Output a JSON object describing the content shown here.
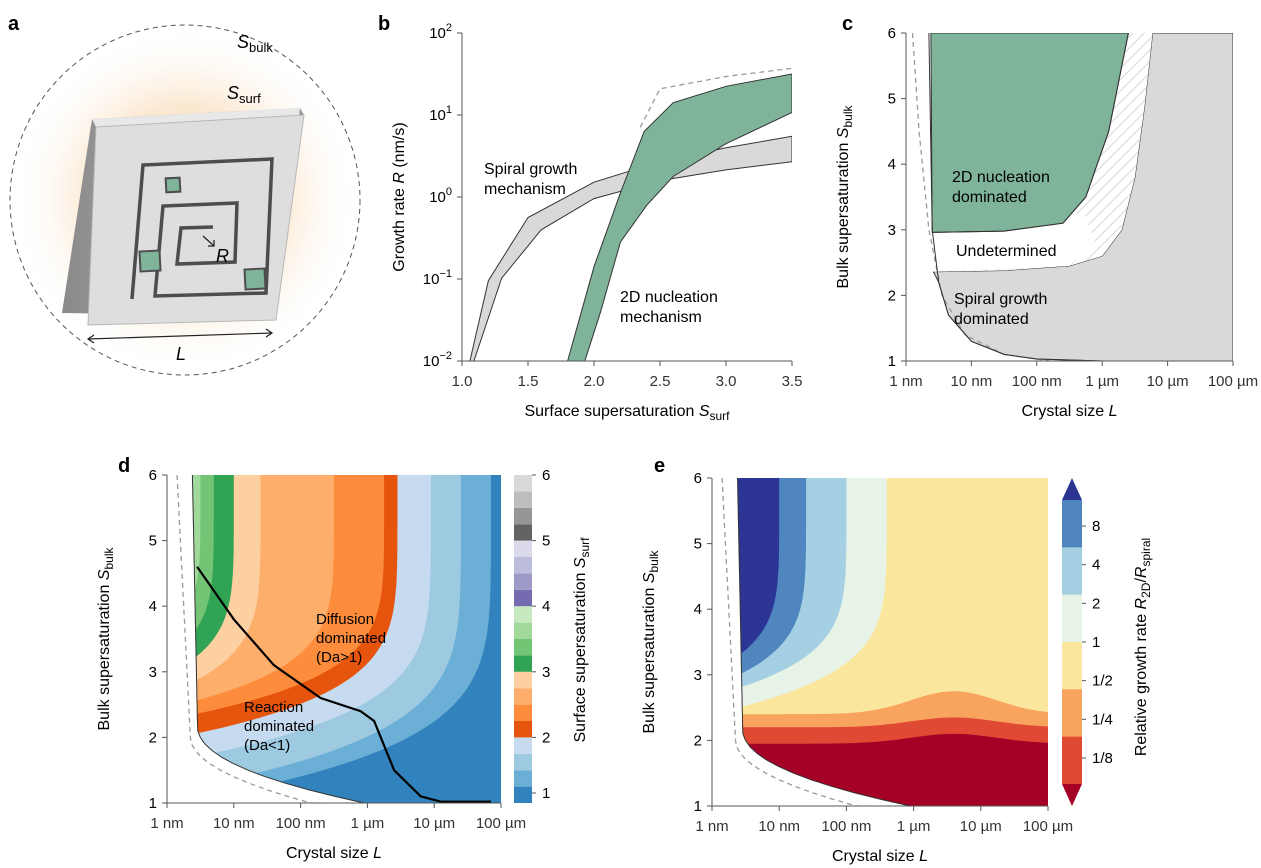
{
  "panels": {
    "a": {
      "label": "a",
      "s_bulk": {
        "main": "S",
        "sub": "bulk"
      },
      "s_surf": {
        "main": "S",
        "sub": "surf"
      },
      "r_label": "R",
      "l_label": "L"
    },
    "b": {
      "label": "b",
      "annotations": {
        "spiral_1": "Spiral growth",
        "spiral_2": "mechanism",
        "nucleation_1": "2D nucleation",
        "nucleation_2": "mechanism"
      }
    },
    "c": {
      "label": "c",
      "annotations": {
        "nuc_1": "2D nucleation",
        "nuc_2": "dominated",
        "undetermined": "Undetermined",
        "spiral_1": "Spiral growth",
        "spiral_2": "dominated"
      }
    },
    "d": {
      "label": "d",
      "annotations": {
        "diff_1": "Diffusion",
        "diff_2": "dominated",
        "diff_3": "(Da>1)",
        "reac_1": "Reaction",
        "reac_2": "dominated",
        "reac_3": "(Da<1)"
      },
      "colorbar_label": {
        "main": "Surface supersaturation ",
        "italic": "S",
        "sub": "surf"
      },
      "colorbar_ticks": [
        "1",
        "2",
        "3",
        "4",
        "5",
        "6"
      ],
      "colorbar_colors": [
        "#3182bd",
        "#6baed6",
        "#9ecae1",
        "#c6dbef",
        "#e6550d",
        "#fd8d3c",
        "#fdae6b",
        "#fdd0a2",
        "#31a354",
        "#74c476",
        "#a1d99b",
        "#c7e9c0",
        "#756bb1",
        "#9e9ac8",
        "#bcbddc",
        "#dadaeb",
        "#636363",
        "#969696",
        "#bdbdbd",
        "#d9d9d9"
      ]
    },
    "e": {
      "label": "e",
      "colorbar_label": {
        "main": "Relative growth rate ",
        "italic1": "R",
        "sub1": "2D",
        "slash": "/",
        "italic2": "R",
        "sub2": "spiral"
      },
      "colorbar_ticks": [
        "8",
        "4",
        "2",
        "1",
        "1/2",
        "1/4",
        "1/8"
      ],
      "colorbar_colors": [
        "#2c3594",
        "#5086c0",
        "#a5d0e4",
        "#e7f3e6",
        "#fbe69e",
        "#f8a35e",
        "#e04a35",
        "#a50026"
      ]
    }
  },
  "chart_data": [
    {
      "id": "b",
      "type": "area",
      "xlabel": {
        "main": "Surface supersaturation ",
        "italic": "S",
        "sub": "surf"
      },
      "ylabel": {
        "main": "Growth rate ",
        "italic": "R",
        "unit": " (nm/s)"
      },
      "xlim": [
        1.0,
        3.5
      ],
      "ylim_log10": [
        -2,
        2
      ],
      "xticks": [
        "1.0",
        "1.5",
        "2.0",
        "2.5",
        "3.0",
        "3.5"
      ],
      "xtick_values": [
        1.0,
        1.5,
        2.0,
        2.5,
        3.0,
        3.5
      ],
      "yticks": [
        {
          "base": "10",
          "exp": "2"
        },
        {
          "base": "10",
          "exp": "1"
        },
        {
          "base": "10",
          "exp": "0"
        },
        {
          "base": "10",
          "exp": "−1"
        },
        {
          "base": "10",
          "exp": "−2"
        }
      ],
      "ytick_log10": [
        2,
        1,
        0,
        -1,
        -2
      ],
      "scale": "log",
      "series": [
        {
          "kind": "spiral",
          "color": "#d9d9d9",
          "upper": [
            [
              1.06,
              -2.0
            ],
            [
              1.2,
              -1.02
            ],
            [
              1.5,
              -0.25
            ],
            [
              2.0,
              0.18
            ],
            [
              2.5,
              0.43
            ],
            [
              3.0,
              0.6
            ],
            [
              3.5,
              0.74
            ]
          ],
          "lower": [
            [
              1.09,
              -2.0
            ],
            [
              1.3,
              -0.99
            ],
            [
              1.6,
              -0.4
            ],
            [
              2.0,
              -0.02
            ],
            [
              2.5,
              0.2
            ],
            [
              3.0,
              0.33
            ],
            [
              3.5,
              0.43
            ]
          ]
        },
        {
          "kind": "nucleation",
          "color": "#7fb49a",
          "upper": [
            [
              1.8,
              -2.0
            ],
            [
              2.0,
              -0.85
            ],
            [
              2.2,
              0.05
            ],
            [
              2.38,
              0.8
            ],
            [
              2.6,
              1.15
            ],
            [
              3.0,
              1.35
            ],
            [
              3.5,
              1.5
            ]
          ],
          "lower": [
            [
              1.93,
              -2.0
            ],
            [
              2.05,
              -1.4
            ],
            [
              2.2,
              -0.55
            ],
            [
              2.4,
              -0.1
            ],
            [
              2.6,
              0.25
            ],
            [
              3.0,
              0.65
            ],
            [
              3.5,
              1.03
            ]
          ]
        }
      ],
      "dashed": [
        [
          2.35,
          0.85
        ],
        [
          2.5,
          1.32
        ],
        [
          3.0,
          1.47
        ],
        [
          3.5,
          1.57
        ]
      ]
    },
    {
      "id": "c",
      "type": "area",
      "xlabel": {
        "main": "Crystal size ",
        "italic": "L"
      },
      "ylabel": {
        "main": "Bulk supersaturation ",
        "italic": "S",
        "sub": "bulk"
      },
      "xlim_log10_m": [
        -9,
        -4
      ],
      "ylim": [
        1,
        6
      ],
      "xticks": [
        "1 nm",
        "10 nm",
        "100 nm",
        "1 µm",
        "10 µm",
        "100 µm"
      ],
      "xtick_log10_m": [
        -9,
        -8,
        -7,
        -6,
        -5,
        -4
      ],
      "yticks": [
        "1",
        "2",
        "3",
        "4",
        "5",
        "6"
      ],
      "ytick_values": [
        1,
        2,
        3,
        4,
        5,
        6
      ],
      "spiral_upper": [
        [
          -8.58,
          2.36
        ],
        [
          -7.5,
          2.38
        ],
        [
          -6.5,
          2.45
        ],
        [
          -6.0,
          2.6
        ],
        [
          -5.7,
          3.0
        ],
        [
          -5.5,
          3.8
        ],
        [
          -5.35,
          4.9
        ],
        [
          -5.23,
          6.0
        ]
      ],
      "undetermined_upper": [
        [
          -8.6,
          2.96
        ],
        [
          -7.5,
          2.98
        ],
        [
          -6.6,
          3.1
        ],
        [
          -6.25,
          3.5
        ],
        [
          -5.9,
          4.5
        ],
        [
          -5.6,
          6.0
        ]
      ],
      "nuc_left": [
        [
          -8.6,
          3.0
        ],
        [
          -8.61,
          5.0
        ],
        [
          -8.62,
          6.0
        ]
      ],
      "dashed_boundary": [
        [
          -8.9,
          6.0
        ],
        [
          -8.8,
          4.5
        ],
        [
          -8.65,
          3.0
        ],
        [
          -8.45,
          2.0
        ],
        [
          -8.1,
          1.4
        ],
        [
          -7.5,
          1.1
        ],
        [
          -6.8,
          1.0
        ]
      ],
      "solid_boundary": [
        [
          -8.65,
          6.0
        ],
        [
          -8.6,
          3.0
        ],
        [
          -8.5,
          2.2
        ],
        [
          -8.35,
          1.7
        ],
        [
          -8.0,
          1.3
        ],
        [
          -7.5,
          1.1
        ],
        [
          -7.0,
          1.03
        ],
        [
          -6.0,
          1.0
        ],
        [
          -4.0,
          1.0
        ]
      ]
    },
    {
      "id": "d",
      "type": "heatmap",
      "xlabel": {
        "main": "Crystal size ",
        "italic": "L"
      },
      "ylabel": {
        "main": "Bulk supersaturation ",
        "italic": "S",
        "sub": "bulk"
      },
      "xticks": [
        "1 nm",
        "10 nm",
        "100 nm",
        "1 µm",
        "10 µm",
        "100 µm"
      ],
      "yticks": [
        "1",
        "2",
        "3",
        "4",
        "5",
        "6"
      ],
      "colorbar_range": [
        1,
        6
      ],
      "da_line": [
        [
          -8.55,
          4.6
        ],
        [
          -8.0,
          3.8
        ],
        [
          -7.4,
          3.1
        ],
        [
          -6.7,
          2.6
        ],
        [
          -6.1,
          2.4
        ],
        [
          -5.9,
          2.25
        ],
        [
          -5.6,
          1.5
        ],
        [
          -5.2,
          1.1
        ],
        [
          -4.9,
          1.02
        ],
        [
          -4.15,
          1.02
        ]
      ]
    },
    {
      "id": "e",
      "type": "heatmap",
      "xlabel": {
        "main": "Crystal size ",
        "italic": "L"
      },
      "ylabel": {
        "main": "Bulk supersaturation ",
        "italic": "S",
        "sub": "bulk"
      },
      "xticks": [
        "1 nm",
        "10 nm",
        "100 nm",
        "1 µm",
        "10 µm",
        "100 µm"
      ],
      "yticks": [
        "1",
        "2",
        "3",
        "4",
        "5",
        "6"
      ],
      "colorbar_range_log2": [
        -4,
        4
      ]
    }
  ]
}
